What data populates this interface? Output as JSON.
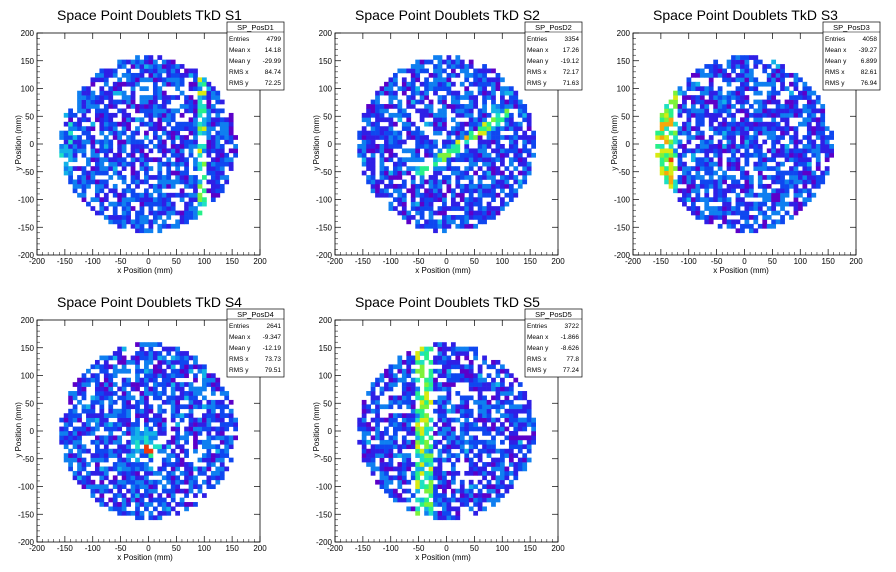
{
  "chart_data": [
    {
      "type": "heatmap",
      "title": "Space Point Doublets TkD S1",
      "xlabel": "x Position (mm)",
      "ylabel": "y Position (mm)",
      "xlim": [
        -200,
        200
      ],
      "ylim": [
        -200,
        200
      ],
      "xticks": [
        "-200",
        "-150",
        "-100",
        "-50",
        "0",
        "50",
        "100",
        "150",
        "200"
      ],
      "yticks": [
        "-200",
        "-150",
        "-100",
        "-50",
        "0",
        "50",
        "100",
        "150",
        "200"
      ],
      "stats": {
        "name": "SP_PosD1",
        "rows": [
          {
            "label": "Entries",
            "value": "4799"
          },
          {
            "label": "Mean x",
            "value": "14.18"
          },
          {
            "label": "Mean y",
            "value": "-29.99"
          },
          {
            "label": "RMS x",
            "value": "84.74"
          },
          {
            "label": "RMS y",
            "value": "72.25"
          }
        ]
      },
      "features": {
        "vband_x": 95,
        "vband_width": 10,
        "edge_side": "left"
      }
    },
    {
      "type": "heatmap",
      "title": "Space Point Doublets TkD S2",
      "xlabel": "x Position (mm)",
      "ylabel": "y Position (mm)",
      "xlim": [
        -200,
        200
      ],
      "ylim": [
        -200,
        200
      ],
      "xticks": [
        "-200",
        "-150",
        "-100",
        "-50",
        "0",
        "50",
        "100",
        "150",
        "200"
      ],
      "yticks": [
        "-200",
        "-150",
        "-100",
        "-50",
        "0",
        "50",
        "100",
        "150",
        "200"
      ],
      "stats": {
        "name": "SP_PosD2",
        "rows": [
          {
            "label": "Entries",
            "value": "3354"
          },
          {
            "label": "Mean x",
            "value": "17.26"
          },
          {
            "label": "Mean y",
            "value": "-19.12"
          },
          {
            "label": "RMS x",
            "value": "72.17"
          },
          {
            "label": "RMS y",
            "value": "71.63"
          }
        ]
      },
      "features": {
        "diag_line": [
          [
            -20,
            -30
          ],
          [
            100,
            50
          ]
        ]
      }
    },
    {
      "type": "heatmap",
      "title": "Space Point Doublets TkD S3",
      "xlabel": "x Position (mm)",
      "ylabel": "y Position (mm)",
      "xlim": [
        -200,
        200
      ],
      "ylim": [
        -200,
        200
      ],
      "xticks": [
        "-200",
        "-150",
        "-100",
        "-50",
        "0",
        "50",
        "100",
        "150",
        "200"
      ],
      "yticks": [
        "-200",
        "-150",
        "-100",
        "-50",
        "0",
        "50",
        "100",
        "150",
        "200"
      ],
      "stats": {
        "name": "SP_PosD3",
        "rows": [
          {
            "label": "Entries",
            "value": "4058"
          },
          {
            "label": "Mean x",
            "value": "-39.27"
          },
          {
            "label": "Mean y",
            "value": "6.899"
          },
          {
            "label": "RMS x",
            "value": "82.61"
          },
          {
            "label": "RMS y",
            "value": "76.94"
          }
        ]
      },
      "features": {
        "vband_x": -140,
        "vband_width": 18,
        "edge_side": "left"
      }
    },
    {
      "type": "heatmap",
      "title": "Space Point Doublets TkD S4",
      "xlabel": "x Position (mm)",
      "ylabel": "y Position (mm)",
      "xlim": [
        -200,
        200
      ],
      "ylim": [
        -200,
        200
      ],
      "xticks": [
        "-200",
        "-150",
        "-100",
        "-50",
        "0",
        "50",
        "100",
        "150",
        "200"
      ],
      "yticks": [
        "-200",
        "-150",
        "-100",
        "-50",
        "0",
        "50",
        "100",
        "150",
        "200"
      ],
      "stats": {
        "name": "SP_PosD4",
        "rows": [
          {
            "label": "Entries",
            "value": "2641"
          },
          {
            "label": "Mean x",
            "value": "-9.347"
          },
          {
            "label": "Mean y",
            "value": "-12.19"
          },
          {
            "label": "RMS x",
            "value": "73.73"
          },
          {
            "label": "RMS y",
            "value": "79.51"
          }
        ]
      },
      "features": {
        "hotspot": [
          0,
          -30
        ]
      }
    },
    {
      "type": "heatmap",
      "title": "Space Point Doublets TkD S5",
      "xlabel": "x Position (mm)",
      "ylabel": "y Position (mm)",
      "xlim": [
        -200,
        200
      ],
      "ylim": [
        -200,
        200
      ],
      "xticks": [
        "-200",
        "-150",
        "-100",
        "-50",
        "0",
        "50",
        "100",
        "150",
        "200"
      ],
      "yticks": [
        "-200",
        "-150",
        "-100",
        "-50",
        "0",
        "50",
        "100",
        "150",
        "200"
      ],
      "stats": {
        "name": "SP_PosD5",
        "rows": [
          {
            "label": "Entries",
            "value": "3722"
          },
          {
            "label": "Mean x",
            "value": "-1.866"
          },
          {
            "label": "Mean y",
            "value": "-8.626"
          },
          {
            "label": "RMS x",
            "value": "77.8"
          },
          {
            "label": "RMS y",
            "value": "77.24"
          }
        ]
      },
      "features": {
        "vband_x": -40,
        "vband_width": 20
      }
    }
  ]
}
